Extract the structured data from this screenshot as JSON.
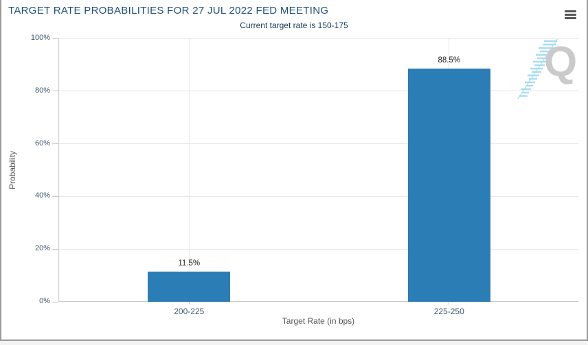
{
  "page": {
    "background_color": "#f3f3f3",
    "panel_background": "#ffffff",
    "panel_border_color": "#9b9b9b"
  },
  "header": {
    "menu_icon": "hamburger-menu",
    "title_color": "#1f4e7a",
    "subtitle_color": "#17365d"
  },
  "chart_data": {
    "type": "bar",
    "title": "TARGET RATE PROBABILITIES FOR 27 JUL 2022 FED MEETING",
    "subtitle": "Current target rate is 150-175",
    "categories": [
      "200-225",
      "225-250"
    ],
    "series": [
      {
        "name": "Probability",
        "values": [
          11.5,
          88.5
        ]
      }
    ],
    "value_labels": [
      "11.5%",
      "88.5%"
    ],
    "xlabel": "Target Rate (in bps)",
    "ylabel": "Probability",
    "ylim": [
      0,
      100
    ],
    "ytick_values": [
      0,
      20,
      40,
      60,
      80,
      100
    ],
    "ytick_labels": [
      "0%",
      "20%",
      "40%",
      "60%",
      "80%",
      "100%"
    ],
    "grid": true,
    "legend": "none",
    "bar_color": "#2b7db6",
    "gridline_color": "#e7e7e7",
    "axis_line_color": "#c9c9c9",
    "tick_label_color": "#3e576f",
    "value_label_color": "#1a1a1a",
    "axis_title_color": "#555555"
  },
  "watermark": {
    "letter": "Q",
    "letter_color": "#cacaca",
    "lines_color": "#a7ddf2"
  }
}
